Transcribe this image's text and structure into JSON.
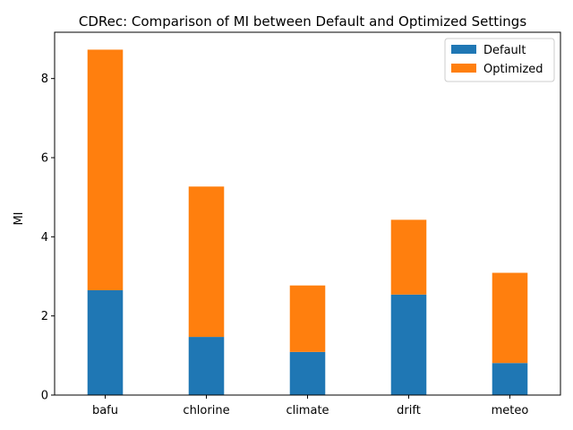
{
  "chart_data": {
    "type": "bar",
    "stacked": true,
    "title": "CDRec: Comparison of MI between Default and Optimized Settings",
    "xlabel": "",
    "ylabel": "MI",
    "categories": [
      "bafu",
      "chlorine",
      "climate",
      "drift",
      "meteo"
    ],
    "series": [
      {
        "name": "Default",
        "color": "#1f77b4",
        "values": [
          2.65,
          1.47,
          1.09,
          2.54,
          0.81
        ]
      },
      {
        "name": "Optimized",
        "color": "#ff7f0e",
        "values": [
          6.08,
          3.8,
          1.68,
          1.89,
          2.28
        ]
      }
    ],
    "ylim": [
      0,
      9.17
    ],
    "yticks": [
      "0",
      "2",
      "4",
      "6",
      "8"
    ],
    "legend_position": "top-right",
    "grid": false
  }
}
